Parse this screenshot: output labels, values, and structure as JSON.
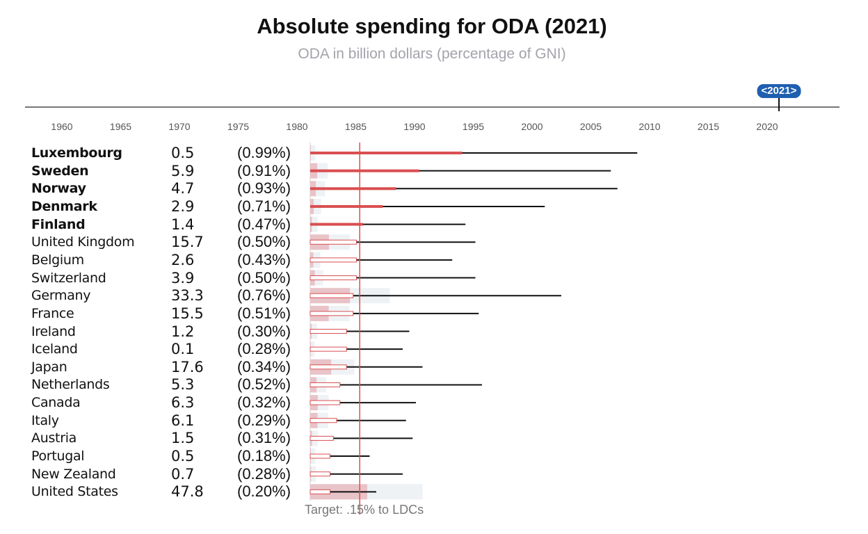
{
  "title": "Absolute spending for ODA (2021)",
  "subtitle": "ODA in billion dollars (percentage of GNI)",
  "colors": {
    "accent_red": "#d94f51",
    "ghost_bar": "#eef2f5",
    "amount_bar": "#e8c3c8",
    "line": "#111111",
    "badge_blue": "#1f5fb0"
  },
  "chart_data": {
    "type": "bar",
    "title": "Absolute spending for ODA (2021)",
    "subtitle": "ODA in billion dollars (percentage of GNI)",
    "timeline": {
      "selected_year_label": "<2021>",
      "selected_year": 2021,
      "ticks": [
        "1960",
        "1965",
        "1970",
        "1975",
        "1980",
        "1985",
        "1990",
        "1995",
        "2000",
        "2005",
        "2010",
        "2015",
        "2020"
      ]
    },
    "gni_scale_max_percent": 1.2,
    "target_line": {
      "label": "Target: .15% to LDCs",
      "value_percent": 0.15
    },
    "unit": "billion dollars",
    "grid": false,
    "legend": false,
    "countries": [
      {
        "name": "Luxembourg",
        "bold": true,
        "amount": "0.5",
        "amount_value": 0.5,
        "pct_label": "(0.99%)",
        "pct_value": 0.99,
        "ldc_pct": 0.46,
        "meets_target": true
      },
      {
        "name": "Sweden",
        "bold": true,
        "amount": "5.9",
        "amount_value": 5.9,
        "pct_label": "(0.91%)",
        "pct_value": 0.91,
        "ldc_pct": 0.33,
        "meets_target": true
      },
      {
        "name": "Norway",
        "bold": true,
        "amount": "4.7",
        "amount_value": 4.7,
        "pct_label": "(0.93%)",
        "pct_value": 0.93,
        "ldc_pct": 0.26,
        "meets_target": true
      },
      {
        "name": "Denmark",
        "bold": true,
        "amount": "2.9",
        "amount_value": 2.9,
        "pct_label": "(0.71%)",
        "pct_value": 0.71,
        "ldc_pct": 0.22,
        "meets_target": true
      },
      {
        "name": "Finland",
        "bold": true,
        "amount": "1.4",
        "amount_value": 1.4,
        "pct_label": "(0.47%)",
        "pct_value": 0.47,
        "ldc_pct": 0.16,
        "meets_target": true
      },
      {
        "name": "United Kingdom",
        "bold": false,
        "amount": "15.7",
        "amount_value": 15.7,
        "pct_label": "(0.50%)",
        "pct_value": 0.5,
        "ldc_pct": 0.14,
        "meets_target": false
      },
      {
        "name": "Belgium",
        "bold": false,
        "amount": "2.6",
        "amount_value": 2.6,
        "pct_label": "(0.43%)",
        "pct_value": 0.43,
        "ldc_pct": 0.14,
        "meets_target": false
      },
      {
        "name": "Switzerland",
        "bold": false,
        "amount": "3.9",
        "amount_value": 3.9,
        "pct_label": "(0.50%)",
        "pct_value": 0.5,
        "ldc_pct": 0.14,
        "meets_target": false
      },
      {
        "name": "Germany",
        "bold": false,
        "amount": "33.3",
        "amount_value": 33.3,
        "pct_label": "(0.76%)",
        "pct_value": 0.76,
        "ldc_pct": 0.13,
        "meets_target": false
      },
      {
        "name": "France",
        "bold": false,
        "amount": "15.5",
        "amount_value": 15.5,
        "pct_label": "(0.51%)",
        "pct_value": 0.51,
        "ldc_pct": 0.13,
        "meets_target": false
      },
      {
        "name": "Ireland",
        "bold": false,
        "amount": "1.2",
        "amount_value": 1.2,
        "pct_label": "(0.30%)",
        "pct_value": 0.3,
        "ldc_pct": 0.11,
        "meets_target": false
      },
      {
        "name": "Iceland",
        "bold": false,
        "amount": "0.1",
        "amount_value": 0.1,
        "pct_label": "(0.28%)",
        "pct_value": 0.28,
        "ldc_pct": 0.11,
        "meets_target": false
      },
      {
        "name": "Japan",
        "bold": false,
        "amount": "17.6",
        "amount_value": 17.6,
        "pct_label": "(0.34%)",
        "pct_value": 0.34,
        "ldc_pct": 0.11,
        "meets_target": false
      },
      {
        "name": "Netherlands",
        "bold": false,
        "amount": "5.3",
        "amount_value": 5.3,
        "pct_label": "(0.52%)",
        "pct_value": 0.52,
        "ldc_pct": 0.09,
        "meets_target": false
      },
      {
        "name": "Canada",
        "bold": false,
        "amount": "6.3",
        "amount_value": 6.3,
        "pct_label": "(0.32%)",
        "pct_value": 0.32,
        "ldc_pct": 0.09,
        "meets_target": false
      },
      {
        "name": "Italy",
        "bold": false,
        "amount": "6.1",
        "amount_value": 6.1,
        "pct_label": "(0.29%)",
        "pct_value": 0.29,
        "ldc_pct": 0.08,
        "meets_target": false
      },
      {
        "name": "Austria",
        "bold": false,
        "amount": "1.5",
        "amount_value": 1.5,
        "pct_label": "(0.31%)",
        "pct_value": 0.31,
        "ldc_pct": 0.07,
        "meets_target": false
      },
      {
        "name": "Portugal",
        "bold": false,
        "amount": "0.5",
        "amount_value": 0.5,
        "pct_label": "(0.18%)",
        "pct_value": 0.18,
        "ldc_pct": 0.06,
        "meets_target": false
      },
      {
        "name": "New Zealand",
        "bold": false,
        "amount": "0.7",
        "amount_value": 0.7,
        "pct_label": "(0.28%)",
        "pct_value": 0.28,
        "ldc_pct": 0.06,
        "meets_target": false
      },
      {
        "name": "United States",
        "bold": false,
        "amount": "47.8",
        "amount_value": 47.8,
        "pct_label": "(0.20%)",
        "pct_value": 0.2,
        "ldc_pct": 0.06,
        "meets_target": false
      }
    ]
  }
}
